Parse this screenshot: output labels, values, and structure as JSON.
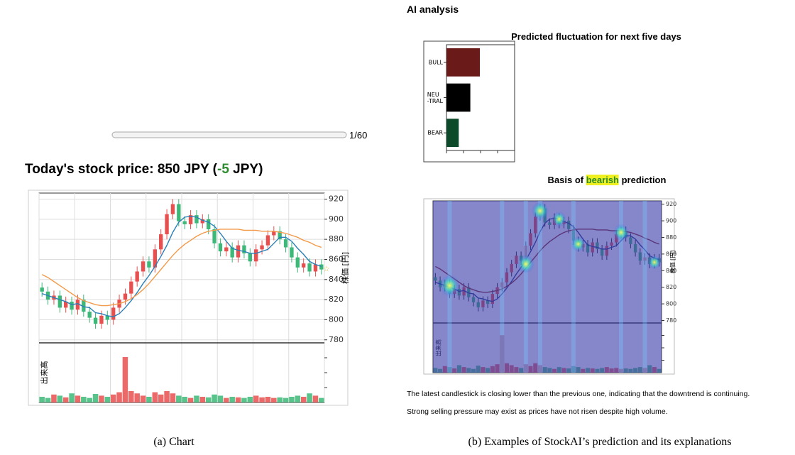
{
  "header": {
    "section_title": "AI analysis",
    "price_title_parts": [
      "Today's stock price: 850 JPY (",
      "-5",
      " JPY)"
    ],
    "slider_label": "1/60"
  },
  "chart_data": [
    {
      "type": "candlestick",
      "ylabel": "株価 [円]",
      "volume_label": "出来高",
      "ylim": [
        777,
        926
      ],
      "yticks": [
        780,
        800,
        820,
        840,
        860,
        880,
        900,
        920
      ],
      "grid": true,
      "up_color": "#e8504f",
      "down_color": "#3cb878",
      "open": [
        832,
        828,
        820,
        824,
        812,
        818,
        810,
        820,
        808,
        802,
        796,
        804,
        800,
        812,
        820,
        826,
        838,
        848,
        858,
        852,
        870,
        885,
        905,
        915,
        898,
        895,
        904,
        896,
        900,
        890,
        876,
        868,
        872,
        862,
        874,
        866,
        858,
        870,
        874,
        884,
        888,
        880,
        872,
        862,
        852,
        856,
        848,
        855
      ],
      "high": [
        837,
        833,
        829,
        829,
        823,
        823,
        825,
        825,
        813,
        807,
        809,
        809,
        817,
        825,
        831,
        843,
        853,
        863,
        863,
        875,
        890,
        910,
        920,
        920,
        903,
        909,
        909,
        905,
        905,
        895,
        881,
        877,
        877,
        879,
        879,
        871,
        875,
        879,
        889,
        893,
        893,
        885,
        877,
        867,
        861,
        861,
        860,
        860
      ],
      "low": [
        823,
        815,
        815,
        807,
        807,
        805,
        805,
        803,
        797,
        791,
        791,
        795,
        795,
        807,
        815,
        821,
        833,
        843,
        847,
        847,
        865,
        880,
        900,
        893,
        890,
        890,
        891,
        891,
        885,
        871,
        863,
        863,
        857,
        857,
        861,
        853,
        853,
        865,
        869,
        879,
        875,
        867,
        857,
        847,
        847,
        843,
        843,
        845
      ],
      "close": [
        828,
        820,
        824,
        812,
        818,
        810,
        820,
        808,
        802,
        796,
        804,
        800,
        812,
        820,
        826,
        838,
        848,
        858,
        852,
        870,
        885,
        905,
        915,
        898,
        895,
        904,
        896,
        900,
        890,
        876,
        868,
        872,
        862,
        874,
        866,
        858,
        870,
        874,
        884,
        888,
        880,
        872,
        862,
        852,
        856,
        848,
        855,
        850
      ],
      "lines": [
        {
          "color": "#2a7fb8",
          "values": [
            826,
            824,
            822,
            820,
            818,
            815,
            816,
            813,
            812,
            807,
            806,
            804,
            803,
            806,
            812,
            819,
            827,
            836,
            844,
            853,
            863,
            874,
            887,
            897,
            902,
            903,
            902,
            899,
            897,
            893,
            886,
            878,
            871,
            869,
            868,
            866,
            866,
            868,
            870,
            876,
            882,
            882,
            878,
            871,
            865,
            858,
            855,
            853
          ]
        },
        {
          "color": "#f39a4a",
          "values": [
            845,
            842,
            838,
            834,
            830,
            826,
            822,
            819,
            817,
            815,
            814,
            814,
            815,
            816,
            818,
            821,
            825,
            830,
            836,
            843,
            850,
            857,
            864,
            870,
            875,
            879,
            883,
            886,
            888,
            889,
            890,
            890,
            890,
            890,
            889,
            889,
            889,
            888,
            888,
            888,
            887,
            886,
            884,
            882,
            879,
            877,
            874,
            872
          ]
        }
      ],
      "volume": [
        10,
        8,
        14,
        12,
        9,
        16,
        12,
        10,
        8,
        15,
        12,
        10,
        14,
        18,
        80,
        20,
        16,
        12,
        10,
        18,
        14,
        20,
        16,
        12,
        10,
        8,
        12,
        10,
        9,
        14,
        12,
        8,
        10,
        9,
        8,
        10,
        12,
        9,
        10,
        8,
        9,
        8,
        10,
        12,
        10,
        16,
        12,
        8
      ],
      "volume_ylim": [
        0,
        100
      ],
      "caption": "(a) Chart"
    },
    {
      "type": "barh",
      "title": "Predicted fluctuation for next five days",
      "categories": [
        "BULL",
        "NEU\n-TRAL",
        "BEAR"
      ],
      "values": [
        0.49,
        0.35,
        0.18
      ],
      "colors": [
        "#6b1a1a",
        "#000000",
        "#0d4a2a"
      ],
      "xlim": [
        0,
        1
      ],
      "xticks": [
        0,
        0.25,
        0.5,
        0.75
      ]
    },
    {
      "type": "candlestick_heatmap",
      "title_parts": [
        "Basis of ",
        "bearish",
        " prediction"
      ],
      "ylabel": "株価 [円]",
      "volume_label": "出来高",
      "ylim": [
        777,
        924
      ],
      "yticks": [
        780,
        800,
        820,
        840,
        860,
        880,
        900,
        920
      ],
      "line_colors": [
        "#1f3d8a",
        "#8b2a2a"
      ],
      "explanations": [
        "The latest candlestick is closing lower than the previous one, indicating that the downtrend is continuing.",
        "Strong selling pressure may exist as prices have not risen despite high volume."
      ],
      "caption": "(b) Examples of StockAI’s prediction and its explanations"
    }
  ]
}
